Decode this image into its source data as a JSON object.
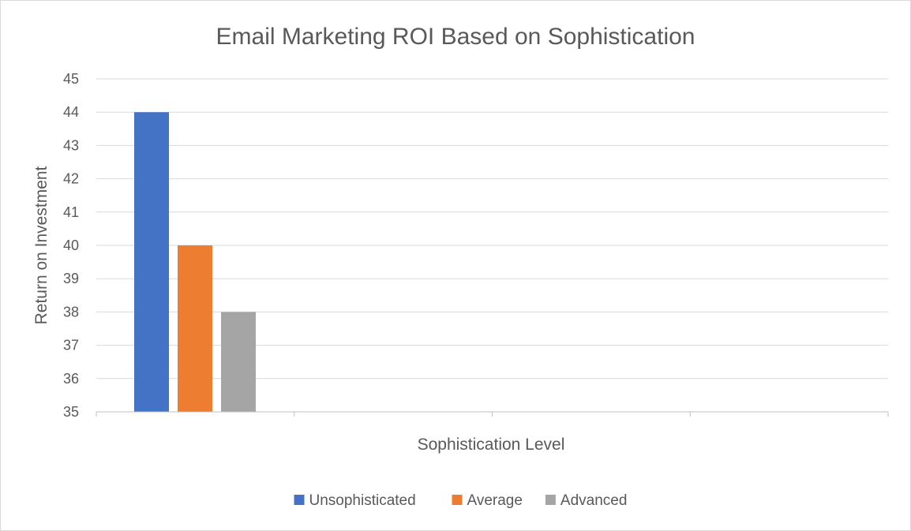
{
  "chart_data": {
    "type": "bar",
    "title": "Email Marketing ROI Based on Sophistication",
    "xlabel": "Sophistication Level",
    "ylabel": "Return on Investment",
    "categories": [
      ""
    ],
    "series": [
      {
        "name": "Unsophisticated",
        "values": [
          44
        ],
        "color": "#4472C4"
      },
      {
        "name": "Average",
        "values": [
          40
        ],
        "color": "#ED7D31"
      },
      {
        "name": "Advanced",
        "values": [
          38
        ],
        "color": "#A5A5A5"
      }
    ],
    "ylim": [
      35,
      45
    ],
    "yticks": [
      35,
      36,
      37,
      38,
      39,
      40,
      41,
      42,
      43,
      44,
      45
    ],
    "x_category_slots": 4,
    "grid": true,
    "legend_position": "bottom"
  }
}
